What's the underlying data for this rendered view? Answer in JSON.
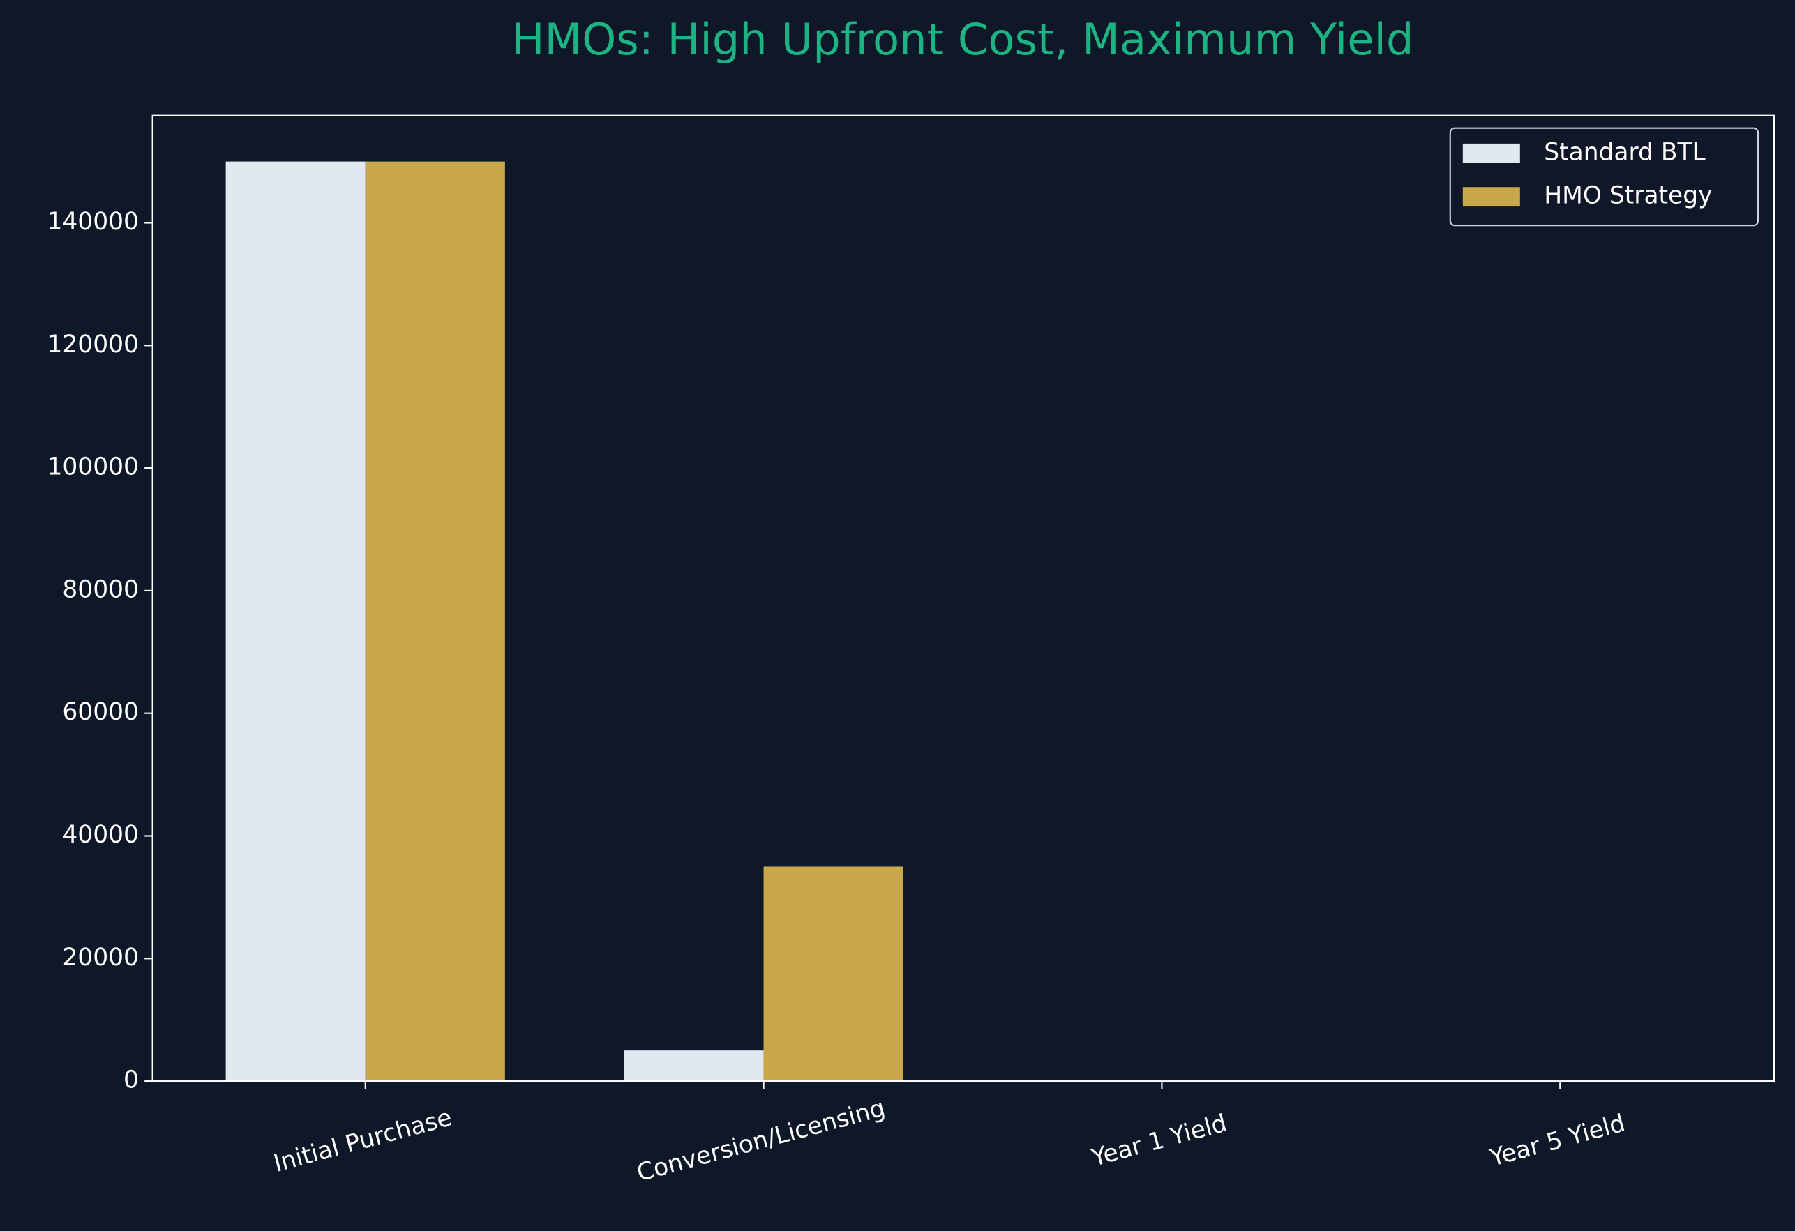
{
  "chart_data": {
    "type": "bar",
    "title": "HMOs: High Upfront Cost, Maximum Yield",
    "categories": [
      "Initial Purchase",
      "Conversion/Licensing",
      "Year 1 Yield",
      "Year 5 Yield"
    ],
    "series": [
      {
        "name": "Standard BTL",
        "color": "#e2e8f0",
        "values": [
          150000,
          5000,
          0,
          0
        ]
      },
      {
        "name": "HMO Strategy",
        "color": "#c8a84b",
        "values": [
          150000,
          35000,
          0,
          0
        ]
      }
    ],
    "ylim": [
      0,
      157500
    ],
    "yticks": [
      0,
      20000,
      40000,
      60000,
      80000,
      100000,
      120000,
      140000
    ],
    "legend": "upper right",
    "grid": false
  }
}
